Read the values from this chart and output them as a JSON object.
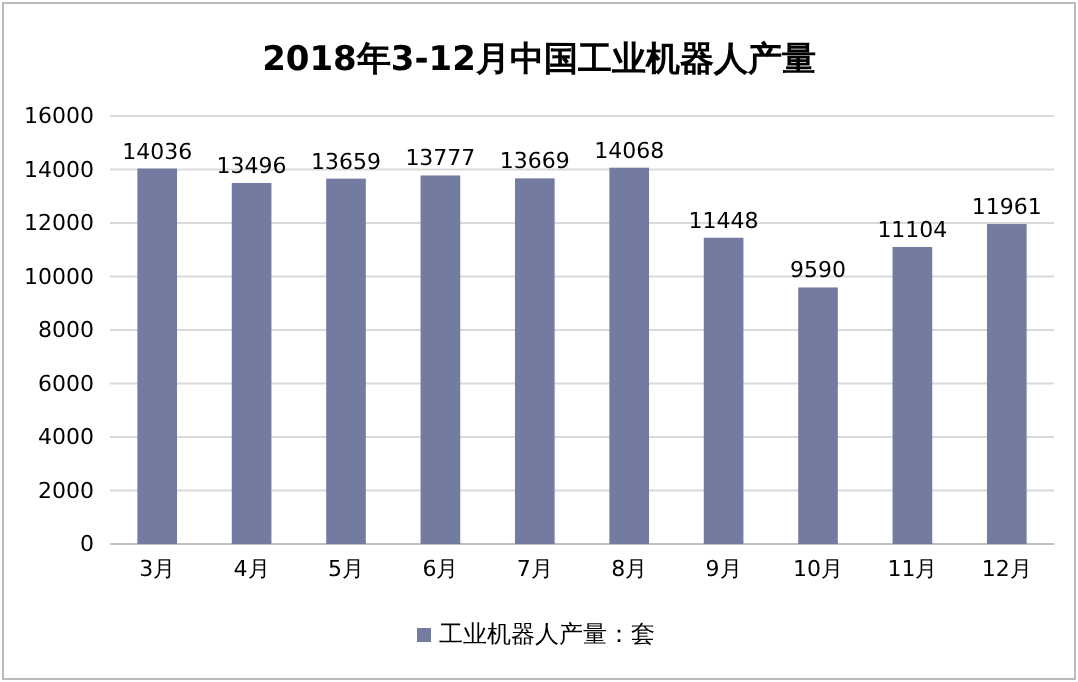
{
  "chart_data": {
    "type": "bar",
    "title": "2018年3-12月中国工业机器人产量",
    "categories": [
      "3月",
      "4月",
      "5月",
      "6月",
      "7月",
      "8月",
      "9月",
      "10月",
      "11月",
      "12月"
    ],
    "series": [
      {
        "name": "工业机器人产量：套",
        "color": "#737ba0",
        "values": [
          14036,
          13496,
          13659,
          13777,
          13669,
          14068,
          11448,
          9590,
          11104,
          11961
        ]
      }
    ],
    "ylim": [
      0,
      16000
    ],
    "yticks": [
      0,
      2000,
      4000,
      6000,
      8000,
      10000,
      12000,
      14000,
      16000
    ],
    "grid": "y",
    "legend": "bottom",
    "data_labels": true
  }
}
